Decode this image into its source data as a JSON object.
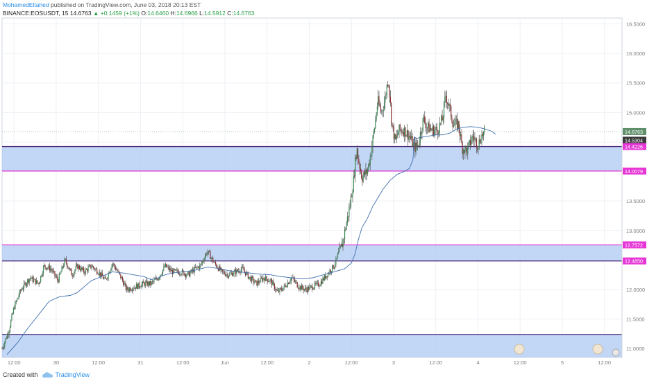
{
  "header": {
    "author": "MohamedEltahed",
    "published": "published on TradingView.com, June 03, 2018 20:13 EST",
    "symbol": "BINANCE:EOSUSDT, 15",
    "last": "14.6763",
    "change": "▲ +0.1459 (+1%)",
    "o_label": "O:",
    "o": "14.6460",
    "h_label": "H:",
    "h": "14.6966",
    "l_label": "L:",
    "l": "14.5912",
    "c_label": "C:",
    "c": "14.6763"
  },
  "footer": {
    "created_with": "Created with",
    "brand": "TradingView"
  },
  "colors": {
    "up": "#3a8a55",
    "down": "#8a2f2f",
    "wick": "#555555",
    "ma": "#3d6fae",
    "zone_fill": "#b7cff3",
    "zone_line_dark": "#4a2a7a",
    "zone_line_magenta": "#e637d6",
    "grid": "#eef0f4",
    "axis_text": "#7d7d7d"
  },
  "chart_data": {
    "type": "candlestick",
    "ylim": [
      10.85,
      16.6
    ],
    "y_ticks": [
      "16.5000",
      "16.0000",
      "15.5000",
      "15.0000",
      "14.5000",
      "14.0000",
      "13.5000",
      "13.0000",
      "12.5000",
      "12.0000",
      "11.5000",
      "11.0000"
    ],
    "y_tick_values": [
      16.5,
      16.0,
      15.5,
      15.0,
      14.5,
      14.0,
      13.5,
      13.0,
      12.5,
      12.0,
      11.5,
      11.0
    ],
    "x_ticks": [
      "12:00",
      "30",
      "12:00",
      "31",
      "12:00",
      "Jun",
      "12:00",
      "2",
      "12:00",
      "3",
      "12:00",
      "4",
      "12:00",
      "5",
      "12:00"
    ],
    "x_tick_hours": [
      12,
      24,
      36,
      48,
      60,
      72,
      84,
      96,
      108,
      120,
      132,
      144,
      156,
      168,
      180
    ],
    "x_range_hours": [
      8.6,
      185
    ],
    "zones": [
      {
        "top": 14.4226,
        "bottom": 14.0079,
        "top_label": "14.4226",
        "bottom_label": "14.0079",
        "top_line": "dark",
        "bottom_line": "magenta"
      },
      {
        "top": 12.7572,
        "bottom": 12.485,
        "top_label": "12.7572",
        "bottom_label": "12.4850",
        "top_line": "magenta",
        "bottom_line": "dark"
      },
      {
        "top": 11.24,
        "bottom": 10.85,
        "top_label": "",
        "bottom_label": "",
        "top_line": "dark",
        "bottom_line": "none"
      }
    ],
    "price_labels": [
      {
        "value": 14.6763,
        "text": "14.6763",
        "color": "#5f8f6a"
      },
      {
        "value": 14.5304,
        "text": "14.5304",
        "color": "#3a3a3a"
      }
    ],
    "close_path": [
      [
        8.6,
        11.0
      ],
      [
        10.5,
        11.3
      ],
      [
        12.0,
        11.7
      ],
      [
        14.0,
        12.0
      ],
      [
        16.5,
        12.2
      ],
      [
        19.0,
        12.1
      ],
      [
        20.5,
        12.4
      ],
      [
        22.5,
        12.35
      ],
      [
        24.5,
        12.15
      ],
      [
        26.5,
        12.5
      ],
      [
        28.5,
        12.25
      ],
      [
        30.0,
        12.4
      ],
      [
        32.0,
        12.3
      ],
      [
        34.0,
        12.4
      ],
      [
        36.0,
        12.3
      ],
      [
        38.0,
        12.15
      ],
      [
        40.0,
        12.45
      ],
      [
        42.5,
        12.2
      ],
      [
        44.0,
        12.0
      ],
      [
        46.5,
        12.05
      ],
      [
        49.0,
        12.1
      ],
      [
        51.0,
        12.1
      ],
      [
        53.0,
        12.2
      ],
      [
        55.0,
        12.4
      ],
      [
        57.0,
        12.3
      ],
      [
        59.5,
        12.3
      ],
      [
        61.5,
        12.25
      ],
      [
        63.5,
        12.35
      ],
      [
        65.0,
        12.4
      ],
      [
        67.0,
        12.65
      ],
      [
        69.0,
        12.45
      ],
      [
        71.0,
        12.3
      ],
      [
        73.0,
        12.25
      ],
      [
        75.0,
        12.3
      ],
      [
        77.0,
        12.35
      ],
      [
        79.0,
        12.2
      ],
      [
        81.0,
        12.1
      ],
      [
        83.0,
        12.2
      ],
      [
        85.0,
        12.15
      ],
      [
        87.0,
        11.95
      ],
      [
        89.0,
        12.05
      ],
      [
        91.0,
        12.2
      ],
      [
        93.0,
        12.05
      ],
      [
        95.0,
        12.0
      ],
      [
        97.0,
        12.05
      ],
      [
        99.0,
        12.1
      ],
      [
        101.0,
        12.25
      ],
      [
        103.0,
        12.4
      ],
      [
        104.5,
        12.6
      ],
      [
        105.5,
        12.8
      ],
      [
        106.5,
        13.1
      ],
      [
        107.5,
        13.4
      ],
      [
        108.5,
        13.8
      ],
      [
        109.5,
        14.4
      ],
      [
        110.0,
        14.2
      ],
      [
        111.0,
        13.9
      ],
      [
        112.5,
        14.0
      ],
      [
        113.5,
        14.3
      ],
      [
        114.5,
        14.7
      ],
      [
        115.5,
        15.2
      ],
      [
        116.5,
        15.0
      ],
      [
        117.5,
        15.2
      ],
      [
        118.5,
        15.6
      ],
      [
        119.5,
        14.8
      ],
      [
        120.5,
        14.5
      ],
      [
        121.5,
        14.7
      ],
      [
        123.0,
        14.7
      ],
      [
        124.5,
        14.6
      ],
      [
        126.0,
        14.4
      ],
      [
        127.0,
        14.45
      ],
      [
        128.5,
        14.9
      ],
      [
        129.5,
        14.75
      ],
      [
        131.0,
        14.7
      ],
      [
        132.5,
        14.7
      ],
      [
        134.0,
        14.9
      ],
      [
        134.8,
        15.3
      ],
      [
        135.8,
        15.1
      ],
      [
        137.0,
        14.8
      ],
      [
        138.5,
        14.8
      ],
      [
        139.5,
        14.4
      ],
      [
        141.0,
        14.35
      ],
      [
        142.5,
        14.6
      ],
      [
        144.0,
        14.45
      ],
      [
        145.0,
        14.6
      ],
      [
        146.0,
        14.68
      ]
    ],
    "ma": [
      [
        10.0,
        10.9
      ],
      [
        13.0,
        11.1
      ],
      [
        16.0,
        11.35
      ],
      [
        18.0,
        11.5
      ],
      [
        20.0,
        11.65
      ],
      [
        22.0,
        11.8
      ],
      [
        25.0,
        11.88
      ],
      [
        28.0,
        11.9
      ],
      [
        30.0,
        11.95
      ],
      [
        32.0,
        12.05
      ],
      [
        34.0,
        12.15
      ],
      [
        36.0,
        12.2
      ],
      [
        38.0,
        12.25
      ],
      [
        40.0,
        12.3
      ],
      [
        43.0,
        12.28
      ],
      [
        46.0,
        12.25
      ],
      [
        49.0,
        12.22
      ],
      [
        51.0,
        12.17
      ],
      [
        53.0,
        12.2
      ],
      [
        55.0,
        12.25
      ],
      [
        57.0,
        12.28
      ],
      [
        60.0,
        12.3
      ],
      [
        63.0,
        12.32
      ],
      [
        65.0,
        12.35
      ],
      [
        67.0,
        12.38
      ],
      [
        70.0,
        12.36
      ],
      [
        73.0,
        12.32
      ],
      [
        76.0,
        12.3
      ],
      [
        79.0,
        12.28
      ],
      [
        82.0,
        12.26
      ],
      [
        85.0,
        12.25
      ],
      [
        88.0,
        12.22
      ],
      [
        91.0,
        12.2
      ],
      [
        94.0,
        12.18
      ],
      [
        97.0,
        12.2
      ],
      [
        100.0,
        12.25
      ],
      [
        103.0,
        12.3
      ],
      [
        106.0,
        12.35
      ],
      [
        108.0,
        12.45
      ],
      [
        109.0,
        12.6
      ],
      [
        110.0,
        12.85
      ],
      [
        111.0,
        13.05
      ],
      [
        112.5,
        13.2
      ],
      [
        114.0,
        13.4
      ],
      [
        115.5,
        13.55
      ],
      [
        117.0,
        13.7
      ],
      [
        119.0,
        13.85
      ],
      [
        121.0,
        13.95
      ],
      [
        123.0,
        14.0
      ],
      [
        124.5,
        14.05
      ],
      [
        125.5,
        14.2
      ],
      [
        126.0,
        14.58
      ],
      [
        126.5,
        14.56
      ],
      [
        128.0,
        14.58
      ],
      [
        130.0,
        14.6
      ],
      [
        132.0,
        14.62
      ],
      [
        134.0,
        14.62
      ],
      [
        136.0,
        14.65
      ],
      [
        138.0,
        14.72
      ],
      [
        140.0,
        14.75
      ],
      [
        142.0,
        14.76
      ],
      [
        144.0,
        14.75
      ],
      [
        146.0,
        14.72
      ],
      [
        148.0,
        14.68
      ],
      [
        149.0,
        14.63
      ]
    ]
  }
}
